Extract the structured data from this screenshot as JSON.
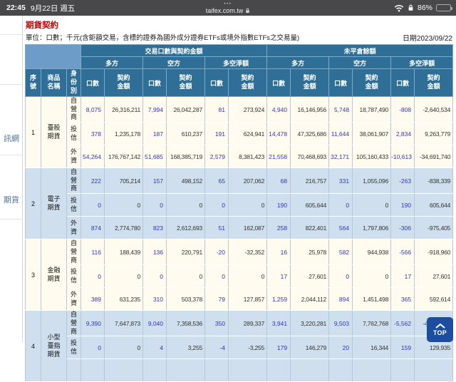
{
  "status_bar": {
    "time": "22:45",
    "date": "9月22日 週五",
    "tab_dots": "•••",
    "url": "taifex.com.tw",
    "battery_percent": "86%"
  },
  "sidebar": {
    "items": [
      {
        "label": "訊網"
      },
      {
        "label": "期貨"
      }
    ]
  },
  "page": {
    "title": "期貨契約",
    "unit_note": "單位：口數；千元(含鉅額交易，含標的證券為國外成分證券ETFs或境外指數ETFs之交易量)",
    "date_label": "日期2023/09/22"
  },
  "table": {
    "group_headers": [
      "交易口數與契約金額",
      "未平倉餘額"
    ],
    "side_headers": [
      "多方",
      "空方",
      "多空淨額"
    ],
    "corner_headers": {
      "seq": "序號",
      "product": "商品名稱",
      "identity": "身份別"
    },
    "metric_headers": {
      "volume": "口數",
      "amount": "契約金額"
    },
    "rows": [
      {
        "seq": "1",
        "product": "臺股期貨",
        "identities": [
          {
            "name": "自營商",
            "values": [
              "8,075",
              "26,316,211",
              "7,994",
              "26,042,287",
              "81",
              "273,924",
              "4,940",
              "16,146,956",
              "5,748",
              "18,787,490",
              "-808",
              "-2,640,534"
            ]
          },
          {
            "name": "投信",
            "values": [
              "378",
              "1,235,178",
              "187",
              "610,237",
              "191",
              "624,941",
              "14,478",
              "47,325,686",
              "11,644",
              "38,061,907",
              "2,834",
              "9,263,779"
            ]
          },
          {
            "name": "外資",
            "values": [
              "54,264",
              "176,767,142",
              "51,685",
              "168,385,719",
              "2,579",
              "8,381,423",
              "21,558",
              "70,468,693",
              "32,171",
              "105,160,433",
              "-10,613",
              "-34,691,740"
            ]
          }
        ]
      },
      {
        "seq": "2",
        "product": "電子期貨",
        "identities": [
          {
            "name": "自營商",
            "values": [
              "222",
              "705,214",
              "157",
              "498,152",
              "65",
              "207,062",
              "68",
              "216,757",
              "331",
              "1,055,096",
              "-263",
              "-838,339"
            ]
          },
          {
            "name": "投信",
            "values": [
              "0",
              "0",
              "0",
              "0",
              "0",
              "0",
              "190",
              "605,644",
              "0",
              "0",
              "190",
              "605,644"
            ]
          },
          {
            "name": "外資",
            "values": [
              "874",
              "2,774,780",
              "823",
              "2,612,693",
              "51",
              "162,087",
              "258",
              "822,401",
              "564",
              "1,797,806",
              "-306",
              "-975,405"
            ]
          }
        ]
      },
      {
        "seq": "3",
        "product": "金融期貨",
        "identities": [
          {
            "name": "自營商",
            "values": [
              "116",
              "188,439",
              "136",
              "220,791",
              "-20",
              "-32,352",
              "16",
              "25,978",
              "582",
              "944,938",
              "-566",
              "-918,960"
            ]
          },
          {
            "name": "投信",
            "values": [
              "0",
              "0",
              "0",
              "0",
              "0",
              "0",
              "17",
              "27,601",
              "0",
              "0",
              "17",
              "27,601"
            ]
          },
          {
            "name": "外資",
            "values": [
              "389",
              "631,235",
              "310",
              "503,378",
              "79",
              "127,857",
              "1,259",
              "2,044,112",
              "894",
              "1,451,498",
              "365",
              "592,614"
            ]
          }
        ]
      },
      {
        "seq": "4",
        "product": "小型臺指期貨",
        "identities": [
          {
            "name": "自營商",
            "values": [
              "9,390",
              "7,647,873",
              "9,040",
              "7,358,536",
              "350",
              "289,337",
              "3,941",
              "3,220,281",
              "9,503",
              "7,762,768",
              "-5,562",
              "-4,542,487"
            ]
          },
          {
            "name": "投信",
            "values": [
              "0",
              "0",
              "4",
              "3,255",
              "-4",
              "-3,255",
              "179",
              "146,279",
              "20",
              "16,344",
              "159",
              "129,935"
            ]
          },
          {
            "name": "",
            "values": [
              "",
              "",
              "",
              "",
              "",
              "",
              "",
              "",
              "",
              "",
              "",
              ""
            ]
          }
        ]
      }
    ]
  },
  "top_button": {
    "label": "TOP"
  },
  "colors": {
    "title_red": "#c00000",
    "header_blue": "#2f6e96",
    "corner_blue": "#6d9cc8",
    "row_cream": "#fffcef",
    "row_blue": "#cfdfee",
    "volume_text": "#3333cc",
    "top_button_blue": "#1c4da0",
    "statusbar_gray": "#48484a"
  }
}
